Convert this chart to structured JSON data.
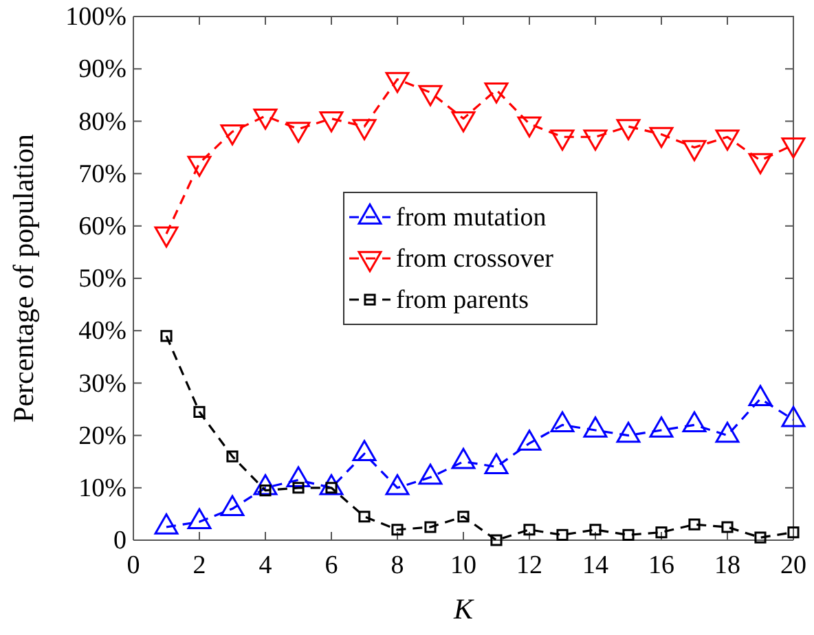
{
  "chart_data": {
    "type": "line",
    "xlabel": "K",
    "ylabel": "Percentage of population",
    "x": [
      1,
      2,
      3,
      4,
      5,
      6,
      7,
      8,
      9,
      10,
      11,
      12,
      13,
      14,
      15,
      16,
      17,
      18,
      19,
      20
    ],
    "series": [
      {
        "name": "from mutation",
        "color": "#0000ff",
        "marker": "triangle",
        "values": [
          2.5,
          3.5,
          6,
          10,
          11.5,
          10,
          16.5,
          10,
          12,
          15,
          14,
          18.5,
          22,
          21,
          20,
          21,
          22,
          20,
          27,
          23
        ]
      },
      {
        "name": "from crossover",
        "color": "#ff0000",
        "marker": "triangle-down",
        "values": [
          58.5,
          72,
          78,
          81,
          78.5,
          80.5,
          79,
          88,
          85.5,
          80.5,
          86,
          79.5,
          77,
          77,
          79,
          77.5,
          75,
          77,
          72.5,
          75.5
        ]
      },
      {
        "name": "from parents",
        "color": "#000000",
        "marker": "square",
        "values": [
          39,
          24.5,
          16,
          9.5,
          10,
          10,
          4.5,
          2,
          2.5,
          4.5,
          0,
          2,
          1,
          2,
          1,
          1.5,
          3,
          2.5,
          0.5,
          1.5
        ]
      }
    ],
    "xlim": [
      0,
      20
    ],
    "xticks": [
      0,
      2,
      4,
      6,
      8,
      10,
      12,
      14,
      16,
      18,
      20
    ],
    "ylim": [
      0,
      100
    ],
    "yticks": [
      {
        "value": 0,
        "label": "0"
      },
      {
        "value": 10,
        "label": "10%"
      },
      {
        "value": 20,
        "label": "20%"
      },
      {
        "value": 30,
        "label": "30%"
      },
      {
        "value": 40,
        "label": "40%"
      },
      {
        "value": 50,
        "label": "50%"
      },
      {
        "value": 60,
        "label": "60%"
      },
      {
        "value": 70,
        "label": "70%"
      },
      {
        "value": 80,
        "label": "80%"
      },
      {
        "value": 90,
        "label": "90%"
      },
      {
        "value": 100,
        "label": "100%"
      }
    ],
    "line_style": "dashed",
    "grid": false,
    "legend": "center"
  }
}
